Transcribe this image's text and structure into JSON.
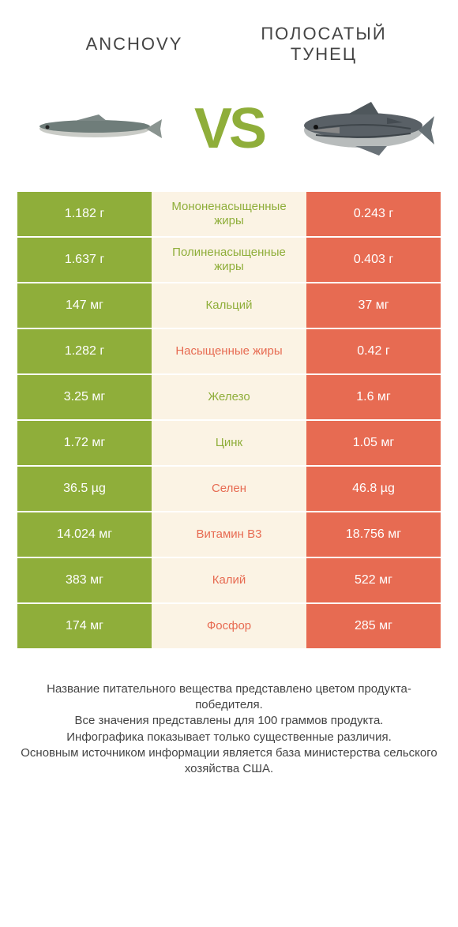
{
  "colors": {
    "green": "#8fae3a",
    "orange": "#e76b52",
    "mid_bg": "#fbf3e4",
    "text_dark": "#444444"
  },
  "header": {
    "left": "ANCHOVY",
    "right": "ПОЛОСАТЫЙ ТУНЕЦ",
    "vs": "VS"
  },
  "rows": [
    {
      "left": "1.182 г",
      "mid": "Мононенасыщенные жиры",
      "right": "0.243 г",
      "winner": "left"
    },
    {
      "left": "1.637 г",
      "mid": "Полиненасыщенные жиры",
      "right": "0.403 г",
      "winner": "left"
    },
    {
      "left": "147 мг",
      "mid": "Кальций",
      "right": "37 мг",
      "winner": "left"
    },
    {
      "left": "1.282 г",
      "mid": "Насыщенные жиры",
      "right": "0.42 г",
      "winner": "right"
    },
    {
      "left": "3.25 мг",
      "mid": "Железо",
      "right": "1.6 мг",
      "winner": "left"
    },
    {
      "left": "1.72 мг",
      "mid": "Цинк",
      "right": "1.05 мг",
      "winner": "left"
    },
    {
      "left": "36.5 µg",
      "mid": "Селен",
      "right": "46.8 µg",
      "winner": "right"
    },
    {
      "left": "14.024 мг",
      "mid": "Витамин B3",
      "right": "18.756 мг",
      "winner": "right"
    },
    {
      "left": "383 мг",
      "mid": "Калий",
      "right": "522 мг",
      "winner": "right"
    },
    {
      "left": "174 мг",
      "mid": "Фосфор",
      "right": "285 мг",
      "winner": "right"
    }
  ],
  "footer": {
    "l1": "Название питательного вещества представлено цветом продукта-победителя.",
    "l2": "Все значения представлены для 100 граммов продукта.",
    "l3": "Инфографика показывает только существенные различия.",
    "l4": "Основным источником информации является база министерства сельского хозяйства США."
  }
}
